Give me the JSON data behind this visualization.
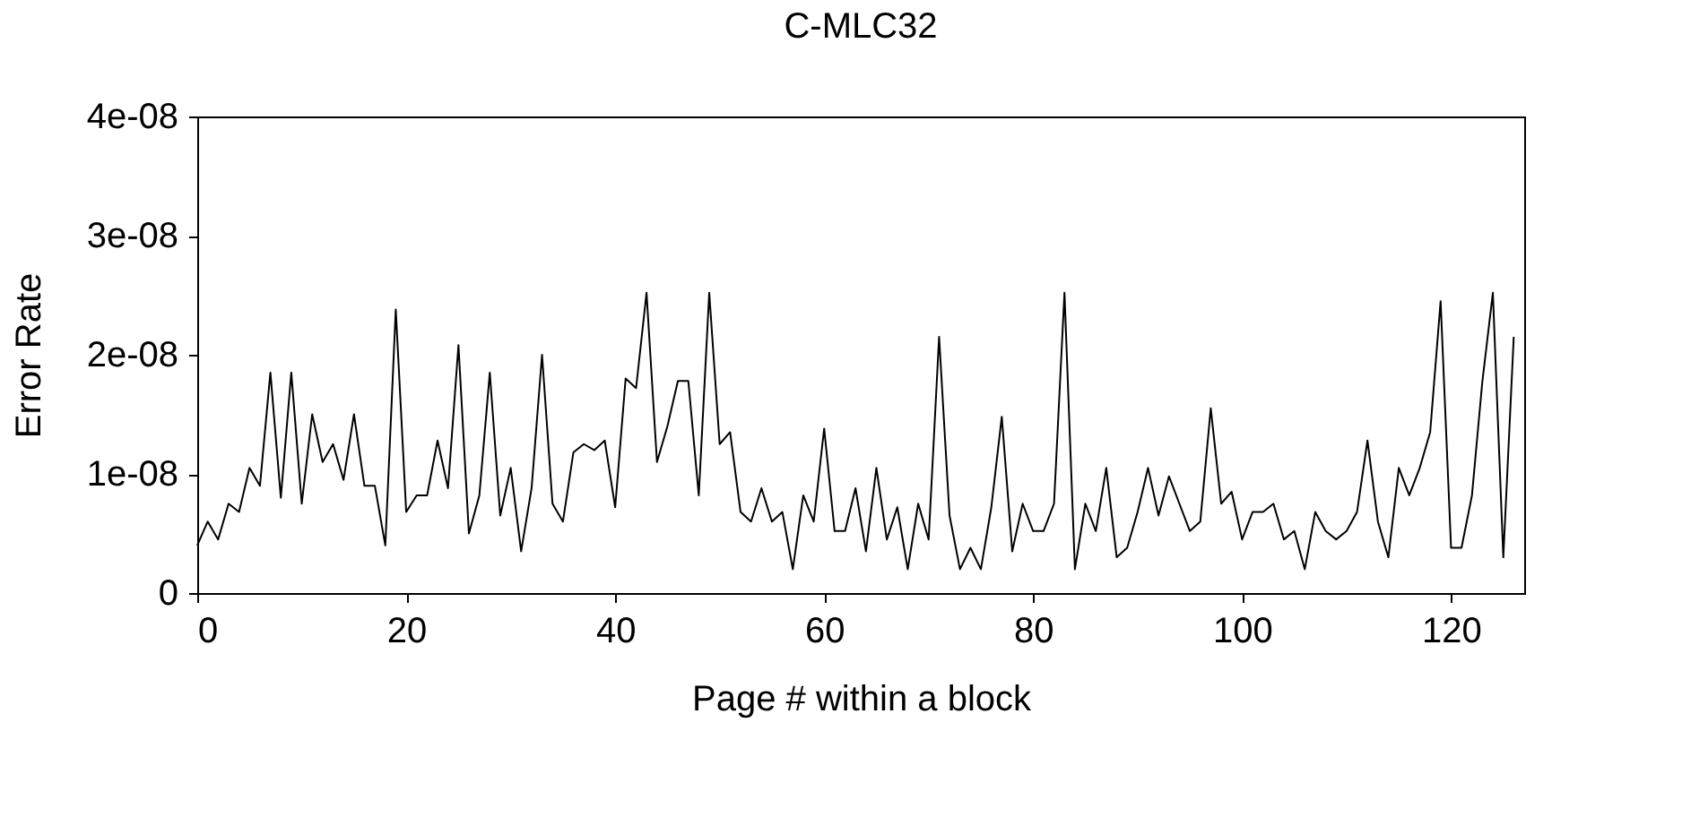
{
  "chart_data": {
    "type": "line",
    "title": "C-MLC32",
    "xlabel": "Page # within a block",
    "ylabel": "Error Rate",
    "x": [
      0,
      1,
      2,
      3,
      4,
      5,
      6,
      7,
      8,
      9,
      10,
      11,
      12,
      13,
      14,
      15,
      16,
      17,
      18,
      19,
      20,
      21,
      22,
      23,
      24,
      25,
      26,
      27,
      28,
      29,
      30,
      31,
      32,
      33,
      34,
      35,
      36,
      37,
      38,
      39,
      40,
      41,
      42,
      43,
      44,
      45,
      46,
      47,
      48,
      49,
      50,
      51,
      52,
      53,
      54,
      55,
      56,
      57,
      58,
      59,
      60,
      61,
      62,
      63,
      64,
      65,
      66,
      67,
      68,
      69,
      70,
      71,
      72,
      73,
      74,
      75,
      76,
      77,
      78,
      79,
      80,
      81,
      82,
      83,
      84,
      85,
      86,
      87,
      88,
      89,
      90,
      91,
      92,
      93,
      94,
      95,
      96,
      97,
      98,
      99,
      100,
      101,
      102,
      103,
      104,
      105,
      106,
      107,
      108,
      109,
      110,
      111,
      112,
      113,
      114,
      115,
      116,
      117,
      118,
      119,
      120,
      121,
      122,
      123,
      124,
      125,
      126
    ],
    "series": [
      {
        "color": "#000000",
        "values": [
          4e-09,
          6e-09,
          4.5e-09,
          7.5e-09,
          6.8e-09,
          1.05e-08,
          9e-09,
          1.85e-08,
          8e-09,
          1.85e-08,
          7.5e-09,
          1.5e-08,
          1.1e-08,
          1.25e-08,
          9.5e-09,
          1.5e-08,
          9e-09,
          9e-09,
          4e-09,
          2.38e-08,
          6.8e-09,
          8.2e-09,
          8.2e-09,
          1.28e-08,
          8.8e-09,
          2.08e-08,
          5e-09,
          8.2e-09,
          1.85e-08,
          6.5e-09,
          1.05e-08,
          3.5e-09,
          8.8e-09,
          2e-08,
          7.5e-09,
          6e-09,
          1.18e-08,
          1.25e-08,
          1.2e-08,
          1.28e-08,
          7.2e-09,
          1.8e-08,
          1.72e-08,
          2.52e-08,
          1.1e-08,
          1.4e-08,
          1.78e-08,
          1.78e-08,
          8.2e-09,
          2.52e-08,
          1.25e-08,
          1.35e-08,
          6.8e-09,
          6e-09,
          8.8e-09,
          6e-09,
          6.8e-09,
          2e-09,
          8.2e-09,
          6e-09,
          1.38e-08,
          5.2e-09,
          5.2e-09,
          8.8e-09,
          3.5e-09,
          1.05e-08,
          4.5e-09,
          7.2e-09,
          2e-09,
          7.5e-09,
          4.5e-09,
          2.15e-08,
          6.5e-09,
          2e-09,
          3.8e-09,
          2e-09,
          7.2e-09,
          1.48e-08,
          3.5e-09,
          7.5e-09,
          5.2e-09,
          5.2e-09,
          7.5e-09,
          2.52e-08,
          2e-09,
          7.5e-09,
          5.2e-09,
          1.05e-08,
          3e-09,
          3.8e-09,
          6.8e-09,
          1.05e-08,
          6.5e-09,
          9.8e-09,
          7.5e-09,
          5.2e-09,
          6e-09,
          1.55e-08,
          7.5e-09,
          8.5e-09,
          4.5e-09,
          6.8e-09,
          6.8e-09,
          7.5e-09,
          4.5e-09,
          5.2e-09,
          2e-09,
          6.8e-09,
          5.2e-09,
          4.5e-09,
          5.2e-09,
          6.8e-09,
          1.28e-08,
          6e-09,
          3e-09,
          1.05e-08,
          8.2e-09,
          1.05e-08,
          1.35e-08,
          2.45e-08,
          3.8e-09,
          3.8e-09,
          8.2e-09,
          1.78e-08,
          2.52e-08,
          3e-09,
          2.15e-08
        ]
      }
    ],
    "xlim": [
      0,
      127
    ],
    "xticks": [
      0,
      20,
      40,
      60,
      80,
      100,
      120
    ],
    "ylim": [
      0,
      4e-08
    ],
    "yticks": [
      0,
      {
        "value": 1e-08,
        "label": "1e-08"
      },
      {
        "value": 2e-08,
        "label": "2e-08"
      },
      {
        "value": 3e-08,
        "label": "3e-08"
      },
      {
        "value": 4e-08,
        "label": "4e-08"
      }
    ],
    "grid": false,
    "legend": false
  }
}
